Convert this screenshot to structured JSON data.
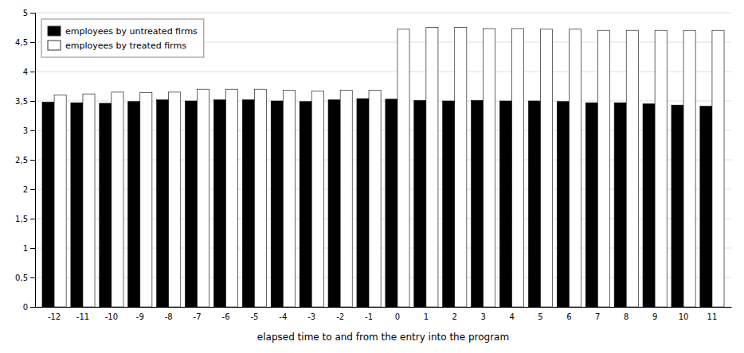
{
  "chart_data": {
    "type": "bar",
    "x_label": "elapsed time to and from the entry into the program",
    "categories": [
      "-12",
      "-11",
      "-10",
      "-9",
      "-8",
      "-7",
      "-6",
      "-5",
      "-4",
      "-3",
      "-2",
      "-1",
      "0",
      "1",
      "2",
      "3",
      "4",
      "5",
      "6",
      "7",
      "8",
      "9",
      "10",
      "11"
    ],
    "series": [
      {
        "name": "employees by untreated firms",
        "color": "#000000",
        "values": [
          3.48,
          3.47,
          3.46,
          3.49,
          3.52,
          3.5,
          3.52,
          3.52,
          3.5,
          3.49,
          3.52,
          3.54,
          3.53,
          3.51,
          3.5,
          3.51,
          3.5,
          3.5,
          3.49,
          3.47,
          3.47,
          3.45,
          3.43,
          3.41
        ]
      },
      {
        "name": "employees by treated firms",
        "color": "#ffffff",
        "values": [
          3.6,
          3.62,
          3.65,
          3.64,
          3.65,
          3.7,
          3.7,
          3.7,
          3.68,
          3.67,
          3.68,
          3.68,
          4.72,
          4.75,
          4.75,
          4.73,
          4.73,
          4.72,
          4.72,
          4.7,
          4.7,
          4.7,
          4.7,
          4.7
        ]
      }
    ],
    "ylim": [
      0,
      5
    ],
    "yticks": [
      0,
      {
        "value": 0.5,
        "label": "0,5"
      },
      1,
      {
        "value": 1.5,
        "label": "1,5"
      },
      2,
      {
        "value": 2.5,
        "label": "2,5"
      },
      3,
      {
        "value": 3.5,
        "label": "3,5"
      },
      4,
      {
        "value": 4.5,
        "label": "4,5"
      },
      5
    ],
    "grid": true,
    "legend": "upper left"
  }
}
